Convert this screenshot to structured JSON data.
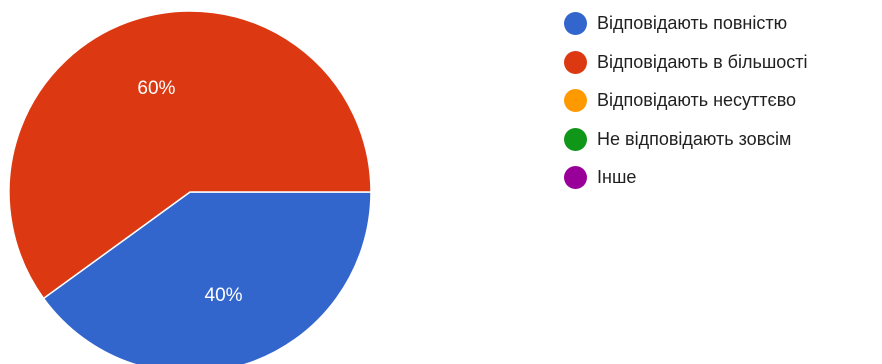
{
  "chart_data": {
    "type": "pie",
    "series": [
      {
        "name": "Відповідають повністю",
        "value": 40,
        "color": "#3366cc",
        "label": "40%"
      },
      {
        "name": "Відповідають в більшості",
        "value": 60,
        "color": "#dc3912",
        "label": "60%"
      },
      {
        "name": "Відповідають несуттєво",
        "value": 0,
        "color": "#ff9900",
        "label": ""
      },
      {
        "name": "Не відповідають зовсім",
        "value": 0,
        "color": "#109618",
        "label": ""
      },
      {
        "name": "Інше",
        "value": 0,
        "color": "#990099",
        "label": ""
      }
    ],
    "start_angle": "3 o'clock, clockwise",
    "legend_position": "right"
  }
}
